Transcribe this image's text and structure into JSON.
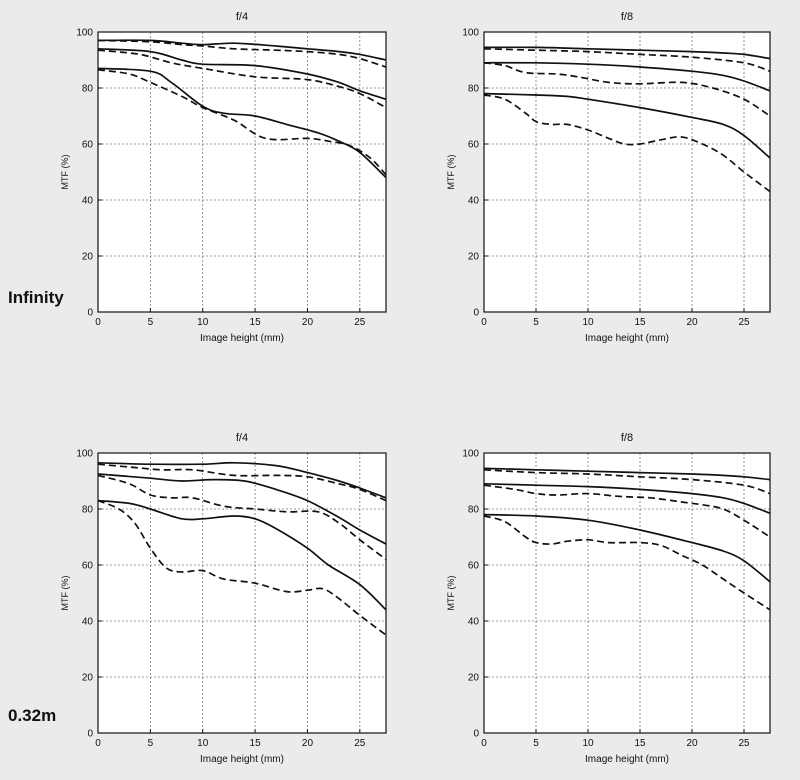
{
  "row_labels": [
    "Infinity",
    "0.32m"
  ],
  "chart_data": [
    {
      "type": "line",
      "title": "f/4",
      "row": "Infinity",
      "xlabel": "Image height (mm)",
      "ylabel": "MTF (%)",
      "xlim": [
        0,
        27.5
      ],
      "ylim": [
        0,
        100
      ],
      "xticks": [
        0,
        5,
        10,
        15,
        20,
        25
      ],
      "yticks": [
        0,
        20,
        40,
        60,
        80,
        100
      ],
      "grid": true,
      "series": [
        {
          "style": "solid",
          "points": [
            [
              0,
              97
            ],
            [
              5,
              97
            ],
            [
              8,
              96
            ],
            [
              10,
              95.5
            ],
            [
              13,
              96
            ],
            [
              17,
              95
            ],
            [
              20,
              94
            ],
            [
              23,
              93
            ],
            [
              25,
              92
            ],
            [
              27.5,
              90
            ]
          ]
        },
        {
          "style": "dashed",
          "points": [
            [
              0,
              97
            ],
            [
              5,
              96.5
            ],
            [
              8,
              95.5
            ],
            [
              10,
              95
            ],
            [
              13,
              94
            ],
            [
              17,
              93.5
            ],
            [
              20,
              93
            ],
            [
              23,
              92
            ],
            [
              25,
              90.5
            ],
            [
              27.5,
              87.5
            ]
          ]
        },
        {
          "style": "solid",
          "points": [
            [
              0,
              94
            ],
            [
              5,
              93
            ],
            [
              8,
              90
            ],
            [
              10,
              88.5
            ],
            [
              15,
              88
            ],
            [
              20,
              85
            ],
            [
              23,
              82
            ],
            [
              25,
              79
            ],
            [
              27.5,
              76
            ]
          ]
        },
        {
          "style": "dashed",
          "points": [
            [
              0,
              93.5
            ],
            [
              4,
              92
            ],
            [
              7,
              89
            ],
            [
              10,
              87
            ],
            [
              15,
              84
            ],
            [
              20,
              83
            ],
            [
              23,
              80.5
            ],
            [
              25,
              78
            ],
            [
              27.5,
              73
            ]
          ]
        },
        {
          "style": "solid",
          "points": [
            [
              0,
              87
            ],
            [
              5,
              86
            ],
            [
              7,
              82
            ],
            [
              10,
              73.5
            ],
            [
              12,
              71
            ],
            [
              15,
              70
            ],
            [
              18,
              67
            ],
            [
              21,
              64
            ],
            [
              23,
              61
            ],
            [
              25,
              57
            ],
            [
              27.5,
              48
            ]
          ]
        },
        {
          "style": "dashed",
          "points": [
            [
              0,
              86.5
            ],
            [
              3,
              85
            ],
            [
              5,
              82
            ],
            [
              8,
              77
            ],
            [
              10,
              73
            ],
            [
              13,
              68.5
            ],
            [
              16,
              62
            ],
            [
              20,
              62
            ],
            [
              22,
              61
            ],
            [
              24,
              59.5
            ],
            [
              26,
              55
            ],
            [
              27.5,
              49
            ]
          ]
        }
      ]
    },
    {
      "type": "line",
      "title": "f/8",
      "row": "Infinity",
      "xlabel": "Image height (mm)",
      "ylabel": "MTF (%)",
      "xlim": [
        0,
        27.5
      ],
      "ylim": [
        0,
        100
      ],
      "xticks": [
        0,
        5,
        10,
        15,
        20,
        25
      ],
      "yticks": [
        0,
        20,
        40,
        60,
        80,
        100
      ],
      "grid": true,
      "series": [
        {
          "style": "solid",
          "points": [
            [
              0,
              94.5
            ],
            [
              5,
              94.5
            ],
            [
              10,
              94
            ],
            [
              15,
              93.5
            ],
            [
              20,
              93
            ],
            [
              23,
              92.5
            ],
            [
              25,
              92
            ],
            [
              27.5,
              90.5
            ]
          ]
        },
        {
          "style": "dashed",
          "points": [
            [
              0,
              94
            ],
            [
              5,
              93.5
            ],
            [
              10,
              93
            ],
            [
              15,
              92
            ],
            [
              20,
              91
            ],
            [
              25,
              89
            ],
            [
              27.5,
              86
            ]
          ]
        },
        {
          "style": "solid",
          "points": [
            [
              0,
              89
            ],
            [
              5,
              89
            ],
            [
              10,
              88.5
            ],
            [
              15,
              87.5
            ],
            [
              20,
              86
            ],
            [
              23,
              84.5
            ],
            [
              25,
              82.5
            ],
            [
              27.5,
              79
            ]
          ]
        },
        {
          "style": "dashed",
          "points": [
            [
              0,
              89
            ],
            [
              2,
              88
            ],
            [
              4,
              85.5
            ],
            [
              7,
              85
            ],
            [
              9,
              84
            ],
            [
              12,
              82
            ],
            [
              15,
              81.5
            ],
            [
              19,
              82
            ],
            [
              22,
              80
            ],
            [
              25,
              76
            ],
            [
              27.5,
              70
            ]
          ]
        },
        {
          "style": "solid",
          "points": [
            [
              0,
              78
            ],
            [
              5,
              77.5
            ],
            [
              8,
              77
            ],
            [
              10,
              76
            ],
            [
              15,
              73
            ],
            [
              20,
              69.5
            ],
            [
              23,
              67
            ],
            [
              25,
              63
            ],
            [
              27.5,
              55
            ]
          ]
        },
        {
          "style": "dashed",
          "points": [
            [
              0,
              77.5
            ],
            [
              2,
              76
            ],
            [
              4,
              71
            ],
            [
              5,
              68
            ],
            [
              6.5,
              67
            ],
            [
              8,
              67
            ],
            [
              10,
              65
            ],
            [
              12,
              62
            ],
            [
              13.5,
              60
            ],
            [
              15,
              60
            ],
            [
              17,
              61.5
            ],
            [
              19,
              62.5
            ],
            [
              21,
              60
            ],
            [
              23,
              56
            ],
            [
              25,
              50
            ],
            [
              27.5,
              43
            ]
          ]
        }
      ]
    },
    {
      "type": "line",
      "title": "f/4",
      "row": "0.32m",
      "xlabel": "Image height (mm)",
      "ylabel": "MTF (%)",
      "xlim": [
        0,
        27.5
      ],
      "ylim": [
        0,
        100
      ],
      "xticks": [
        0,
        5,
        10,
        15,
        20,
        25
      ],
      "yticks": [
        0,
        20,
        40,
        60,
        80,
        100
      ],
      "grid": true,
      "series": [
        {
          "style": "solid",
          "points": [
            [
              0,
              96.5
            ],
            [
              5,
              96
            ],
            [
              10,
              96
            ],
            [
              13,
              96.5
            ],
            [
              17,
              95.5
            ],
            [
              20,
              93
            ],
            [
              23,
              90
            ],
            [
              25,
              87.5
            ],
            [
              27.5,
              84
            ]
          ]
        },
        {
          "style": "dashed",
          "points": [
            [
              0,
              96
            ],
            [
              3,
              95
            ],
            [
              6,
              94
            ],
            [
              9,
              94
            ],
            [
              13,
              92
            ],
            [
              17,
              92
            ],
            [
              20,
              91.5
            ],
            [
              23,
              89
            ],
            [
              25,
              87
            ],
            [
              27.5,
              83
            ]
          ]
        },
        {
          "style": "solid",
          "points": [
            [
              0,
              92.5
            ],
            [
              5,
              91
            ],
            [
              8,
              90
            ],
            [
              11,
              90.5
            ],
            [
              14,
              90
            ],
            [
              17,
              87
            ],
            [
              20,
              83
            ],
            [
              23,
              77
            ],
            [
              25,
              72.5
            ],
            [
              27.5,
              67.5
            ]
          ]
        },
        {
          "style": "dashed",
          "points": [
            [
              0,
              92
            ],
            [
              3,
              89
            ],
            [
              5,
              85
            ],
            [
              7,
              84
            ],
            [
              9,
              84
            ],
            [
              12,
              81
            ],
            [
              15,
              80
            ],
            [
              18,
              79
            ],
            [
              21,
              79
            ],
            [
              23,
              75
            ],
            [
              25,
              69
            ],
            [
              27.5,
              62
            ]
          ]
        },
        {
          "style": "solid",
          "points": [
            [
              0,
              83
            ],
            [
              3,
              82
            ],
            [
              5,
              80
            ],
            [
              8,
              76.5
            ],
            [
              10,
              76.5
            ],
            [
              13,
              77.5
            ],
            [
              15,
              76.5
            ],
            [
              17,
              73
            ],
            [
              20,
              66
            ],
            [
              22,
              60
            ],
            [
              25,
              53
            ],
            [
              27.5,
              44
            ]
          ]
        },
        {
          "style": "dashed",
          "points": [
            [
              0,
              83
            ],
            [
              2,
              80
            ],
            [
              3.5,
              75
            ],
            [
              5,
              66
            ],
            [
              6.5,
              59
            ],
            [
              8,
              57.5
            ],
            [
              10,
              58
            ],
            [
              12,
              55
            ],
            [
              15,
              53.5
            ],
            [
              18,
              50.5
            ],
            [
              20,
              51
            ],
            [
              21.5,
              51.5
            ],
            [
              23,
              48
            ],
            [
              25,
              42
            ],
            [
              27.5,
              35
            ]
          ]
        }
      ]
    },
    {
      "type": "line",
      "title": "f/8",
      "row": "0.32m",
      "xlabel": "Image height (mm)",
      "ylabel": "MTF (%)",
      "xlim": [
        0,
        27.5
      ],
      "ylim": [
        0,
        100
      ],
      "xticks": [
        0,
        5,
        10,
        15,
        20,
        25
      ],
      "yticks": [
        0,
        20,
        40,
        60,
        80,
        100
      ],
      "grid": true,
      "series": [
        {
          "style": "solid",
          "points": [
            [
              0,
              94.5
            ],
            [
              5,
              94
            ],
            [
              10,
              93.5
            ],
            [
              15,
              93
            ],
            [
              20,
              92.5
            ],
            [
              23,
              92
            ],
            [
              25,
              91.5
            ],
            [
              27.5,
              90.5
            ]
          ]
        },
        {
          "style": "dashed",
          "points": [
            [
              0,
              94
            ],
            [
              5,
              93
            ],
            [
              10,
              92.5
            ],
            [
              15,
              91.5
            ],
            [
              20,
              90.5
            ],
            [
              25,
              88.5
            ],
            [
              27.5,
              85.5
            ]
          ]
        },
        {
          "style": "solid",
          "points": [
            [
              0,
              89
            ],
            [
              5,
              88.5
            ],
            [
              10,
              88
            ],
            [
              15,
              87
            ],
            [
              20,
              85.5
            ],
            [
              23,
              84
            ],
            [
              25,
              82
            ],
            [
              27.5,
              78.5
            ]
          ]
        },
        {
          "style": "dashed",
          "points": [
            [
              0,
              88.5
            ],
            [
              3,
              87
            ],
            [
              5,
              85.5
            ],
            [
              7,
              85
            ],
            [
              10,
              85.5
            ],
            [
              13,
              84.5
            ],
            [
              16,
              84
            ],
            [
              19,
              82.5
            ],
            [
              21,
              81.5
            ],
            [
              23,
              80
            ],
            [
              25,
              76
            ],
            [
              27.5,
              70
            ]
          ]
        },
        {
          "style": "solid",
          "points": [
            [
              0,
              78
            ],
            [
              5,
              77.5
            ],
            [
              10,
              76
            ],
            [
              15,
              72.5
            ],
            [
              20,
              68
            ],
            [
              23,
              65
            ],
            [
              25,
              61.5
            ],
            [
              27.5,
              54
            ]
          ]
        },
        {
          "style": "dashed",
          "points": [
            [
              0,
              77.5
            ],
            [
              2,
              75.5
            ],
            [
              4,
              70
            ],
            [
              5,
              68
            ],
            [
              6.5,
              67.5
            ],
            [
              8,
              68.5
            ],
            [
              10,
              69
            ],
            [
              12,
              68
            ],
            [
              15,
              68
            ],
            [
              17,
              67
            ],
            [
              19,
              63.5
            ],
            [
              21,
              60
            ],
            [
              23,
              55
            ],
            [
              25,
              50
            ],
            [
              27.5,
              44
            ]
          ]
        }
      ]
    }
  ]
}
